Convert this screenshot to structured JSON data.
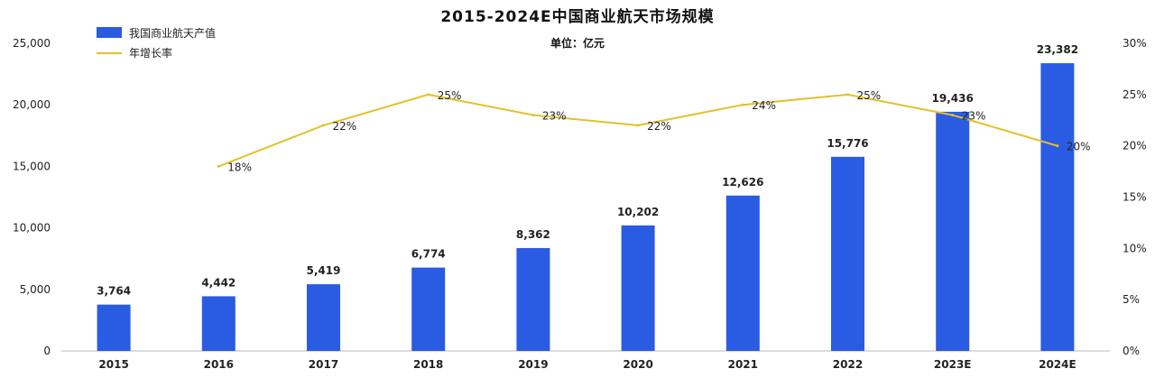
{
  "chart_data": {
    "type": "bar",
    "title": "2015-2024E中国商业航天市场规模",
    "subtitle": "单位：亿元",
    "categories": [
      "2015",
      "2016",
      "2017",
      "2018",
      "2019",
      "2020",
      "2021",
      "2022",
      "2023E",
      "2024E"
    ],
    "series": [
      {
        "name": "我国商业航天产值",
        "type": "bar",
        "color": "#2a5be3",
        "axis": "left",
        "values": [
          3764,
          4442,
          5419,
          6774,
          8362,
          10202,
          12626,
          15776,
          19436,
          23382
        ],
        "labels": [
          "3,764",
          "4,442",
          "5,419",
          "6,774",
          "8,362",
          "10,202",
          "12,626",
          "15,776",
          "19,436",
          "23,382"
        ]
      },
      {
        "name": "年增长率",
        "type": "line",
        "color": "#e3c12a",
        "axis": "right",
        "values": [
          null,
          18,
          22,
          25,
          23,
          22,
          24,
          25,
          23,
          20
        ],
        "labels": [
          "",
          "18%",
          "22%",
          "25%",
          "23%",
          "22%",
          "24%",
          "25%",
          "23%",
          "20%"
        ]
      }
    ],
    "y_left": {
      "ylim": [
        0,
        25000
      ],
      "ticks": [
        "0",
        "5,000",
        "10,000",
        "15,000",
        "20,000",
        "25,000"
      ]
    },
    "y_right": {
      "ylim": [
        0,
        30
      ],
      "ticks": [
        "0%",
        "5%",
        "10%",
        "15%",
        "20%",
        "25%",
        "30%"
      ]
    },
    "grid": false,
    "legend": "top-left"
  }
}
